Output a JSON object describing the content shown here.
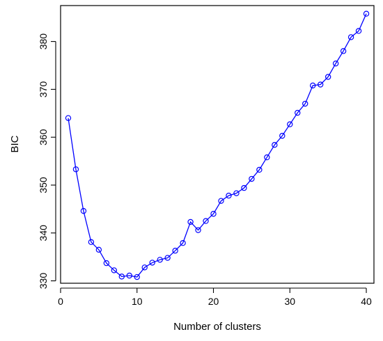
{
  "chart_data": {
    "type": "line",
    "title": "",
    "xlabel": "Number of clusters",
    "ylabel": "BIC",
    "xlim": [
      0,
      41
    ],
    "ylim": [
      329.5,
      387.5
    ],
    "x_ticks": [
      0,
      10,
      20,
      30,
      40
    ],
    "x_tick_labels": [
      "0",
      "10",
      "20",
      "30",
      "40"
    ],
    "y_ticks": [
      330,
      340,
      350,
      360,
      370,
      380
    ],
    "y_tick_labels": [
      "330",
      "340",
      "350",
      "360",
      "370",
      "380"
    ],
    "grid": false,
    "legend": "none",
    "series": [
      {
        "color": "#0000ff",
        "marker": "open-circle",
        "x": [
          1,
          2,
          3,
          4,
          5,
          6,
          7,
          8,
          9,
          10,
          11,
          12,
          13,
          14,
          15,
          16,
          17,
          18,
          19,
          20,
          21,
          22,
          23,
          24,
          25,
          26,
          27,
          28,
          29,
          30,
          31,
          32,
          33,
          34,
          35,
          36,
          37,
          38,
          39,
          40
        ],
        "values": [
          364.0,
          353.3,
          344.6,
          338.1,
          336.5,
          333.7,
          332.2,
          330.9,
          331.1,
          330.8,
          332.8,
          333.8,
          334.4,
          334.8,
          336.3,
          337.9,
          342.3,
          340.6,
          342.5,
          344.0,
          346.7,
          347.8,
          348.3,
          349.4,
          351.3,
          353.2,
          355.8,
          358.4,
          360.3,
          362.7,
          365.1,
          367.0,
          370.8,
          371.0,
          372.6,
          375.4,
          378.0,
          380.9,
          382.2,
          385.8
        ]
      }
    ]
  }
}
